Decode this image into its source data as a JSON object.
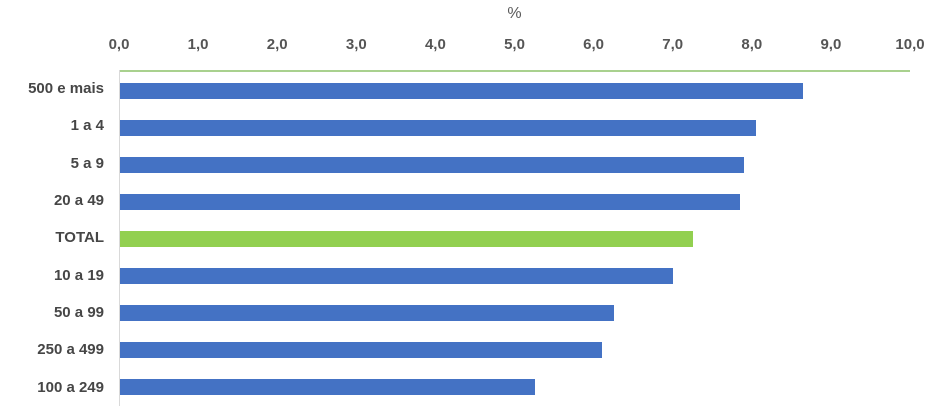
{
  "chart_data": {
    "type": "bar",
    "orientation": "horizontal",
    "title": "%",
    "xlabel": "%",
    "ylabel": "",
    "categories": [
      "500 e mais",
      "1 a 4",
      "5 a 9",
      "20 a 49",
      "TOTAL",
      "10 a 19",
      "50 a 99",
      "250 a 499",
      "100 a 249"
    ],
    "values": [
      8.65,
      8.05,
      7.9,
      7.85,
      7.25,
      7.0,
      6.25,
      6.1,
      5.25
    ],
    "highlight_category": "TOTAL",
    "xlim": [
      0,
      10
    ],
    "x_tick_labels": [
      "0,0",
      "1,0",
      "2,0",
      "3,0",
      "4,0",
      "5,0",
      "6,0",
      "7,0",
      "8,0",
      "9,0",
      "10,0"
    ],
    "decimal_separator": ",",
    "legend": "none",
    "grid": "off",
    "colors": {
      "bar": "#4472C4",
      "highlight_bar": "#92D050",
      "top_axis_line": "#A9D18E",
      "left_axis_line": "#D9D9D9",
      "tick_text": "#555555",
      "category_text": "#464646",
      "title_text": "#595959",
      "background": "#FFFFFF"
    }
  }
}
